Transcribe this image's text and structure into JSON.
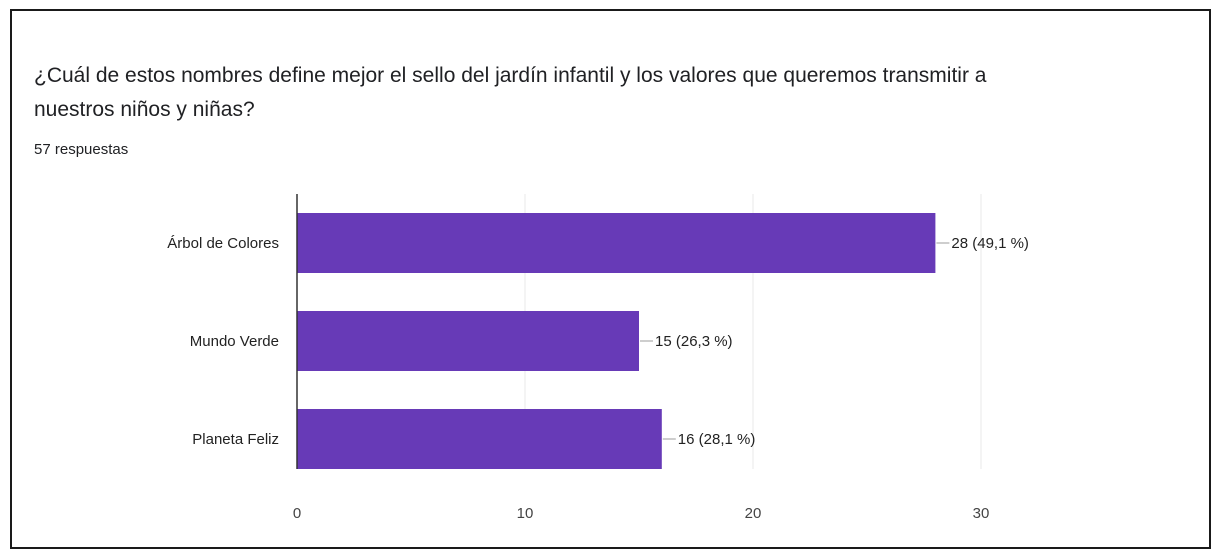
{
  "question": {
    "title": "¿Cuál de estos nombres define mejor el sello del jardín infantil y los valores que queremos transmitir a nuestros niños y niñas?",
    "responses": "57 respuestas"
  },
  "chart_data": {
    "type": "bar",
    "orientation": "horizontal",
    "categories": [
      "Árbol de Colores",
      "Mundo Verde",
      "Planeta Feliz"
    ],
    "values": [
      28,
      15,
      16
    ],
    "value_labels": [
      "28 (49,1 %)",
      "15 (26,3 %)",
      "16 (28,1 %)"
    ],
    "xticks": [
      0,
      10,
      20,
      30
    ],
    "xlim": [
      0,
      30
    ],
    "grid": true,
    "color": "#673ab7"
  }
}
